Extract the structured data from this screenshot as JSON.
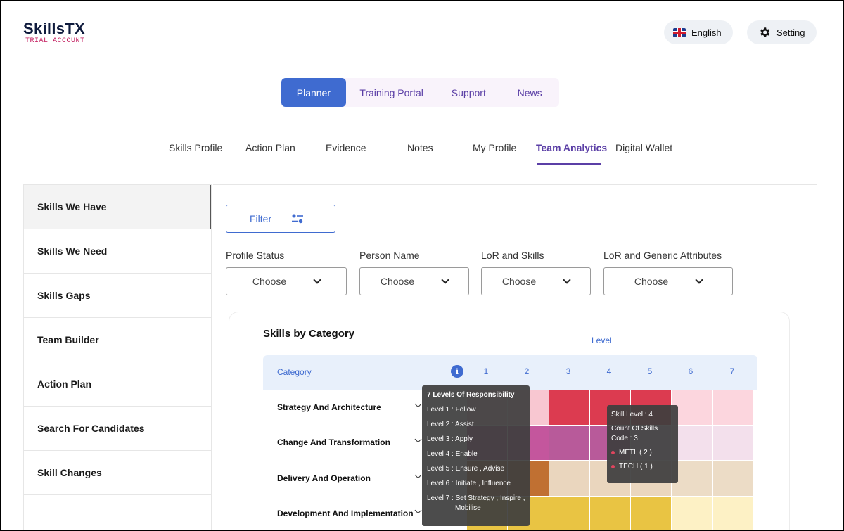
{
  "brand": {
    "name": "SkillsTX",
    "account_type": "TRIAL ACCOUNT"
  },
  "header": {
    "language_label": "English",
    "setting_label": "Setting"
  },
  "main_nav": [
    {
      "label": "Planner",
      "active": true
    },
    {
      "label": "Training Portal"
    },
    {
      "label": "Support"
    },
    {
      "label": "News"
    }
  ],
  "sub_nav": [
    {
      "label": "Skills Profile"
    },
    {
      "label": "Action Plan"
    },
    {
      "label": "Evidence"
    },
    {
      "label": "Notes"
    },
    {
      "label": "My Profile"
    },
    {
      "label": "Team Analytics",
      "active": true
    },
    {
      "label": "Digital Wallet"
    }
  ],
  "sidebar": {
    "items": [
      {
        "label": "Skills We Have",
        "active": true
      },
      {
        "label": "Skills We Need"
      },
      {
        "label": "Skills Gaps"
      },
      {
        "label": "Team Builder"
      },
      {
        "label": "Action Plan"
      },
      {
        "label": "Search For Candidates"
      },
      {
        "label": "Skill Changes"
      }
    ]
  },
  "filter": {
    "button_label": "Filter",
    "groups": [
      {
        "label": "Profile Status",
        "value": "Choose"
      },
      {
        "label": "Person Name",
        "value": "Choose"
      },
      {
        "label": "LoR and Skills",
        "value": "Choose"
      },
      {
        "label": "LoR and Generic Attributes",
        "value": "Choose"
      }
    ]
  },
  "chart": {
    "title": "Skills by Category",
    "level_label": "Level",
    "category_label": "Category",
    "info_glyph": "i",
    "levels": [
      "1",
      "2",
      "3",
      "4",
      "5",
      "6",
      "7"
    ],
    "rows": [
      {
        "label": "Strategy And Architecture"
      },
      {
        "label": "Change And Transformation"
      },
      {
        "label": "Delivery And Operation"
      },
      {
        "label": "Development And Implementation"
      }
    ]
  },
  "chart_data": {
    "type": "heatmap",
    "title": "Skills by Category",
    "x_label": "Level",
    "y_label": "Category",
    "x": [
      "1",
      "2",
      "3",
      "4",
      "5",
      "6",
      "7"
    ],
    "y": [
      "Strategy And Architecture",
      "Change And Transformation",
      "Delivery And Operation",
      "Development And Implementation"
    ],
    "cell_colors": [
      [
        "#f8c7d1",
        "#f8c7d1",
        "#dc3b50",
        "#dc3b50",
        "#dc3b50",
        "#fcd6de",
        "#fcd6de"
      ],
      [
        "#c4569d",
        "#c4569d",
        "#b85a9a",
        "#b85a9a",
        "#efd5e6",
        "#f3e0ec",
        "#f3e0ec"
      ],
      [
        "#c07032",
        "#c07032",
        "#ead6be",
        "#ead6be",
        "#ead6be",
        "#ecdcc6",
        "#ecdcc6"
      ],
      [
        "#e9c443",
        "#e9c443",
        "#e9c443",
        "#e9c443",
        "#e9c443",
        "#fdf1c5",
        "#fdf1c5"
      ]
    ],
    "tooltip_example": {
      "skill_level": 4,
      "count_of_skills_code": 3,
      "breakdown": [
        {
          "code": "METL",
          "count": 2
        },
        {
          "code": "TECH",
          "count": 1
        }
      ]
    }
  },
  "tooltips": {
    "levels": {
      "title": "7  Levels Of Responsibility",
      "lines": [
        "Level 1 : Follow",
        "Level 2 : Assist",
        "Level 3 : Apply",
        "Level 4 : Enable",
        "Level 5 : Ensure , Advise",
        "Level 6 : Initiate , Influence",
        "Level 7 : Set Strategy , Inspire ,"
      ],
      "continuation": "Mobilise"
    },
    "skill": {
      "level_line": "Skill Level : 4",
      "count_line_1": "Count Of Skills",
      "count_line_2": "Code : 3",
      "items": [
        "METL ( 2 )",
        "TECH ( 1 )"
      ]
    }
  }
}
